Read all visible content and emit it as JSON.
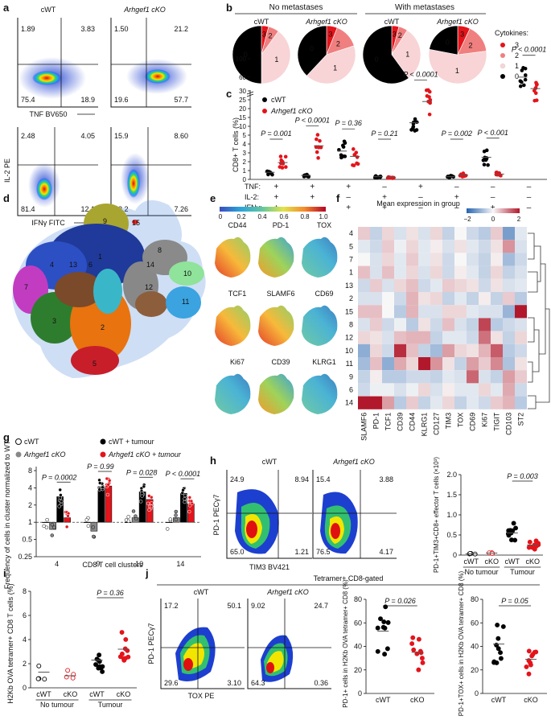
{
  "panel_labels": {
    "a": "a",
    "b": "b",
    "c": "c",
    "d": "d",
    "e": "e",
    "f": "f",
    "g": "g",
    "h": "h",
    "i": "i",
    "j": "j"
  },
  "panel_a": {
    "cols": [
      "cWT",
      "Arhgef1 cKO"
    ],
    "x_top": "TNF BV650",
    "x_bottom": "IFNγ FITC",
    "y_label": "IL-2 PE",
    "top_left": [
      "1.89",
      "3.83",
      "75.4",
      "18.9"
    ],
    "top_right": [
      "1.50",
      "21.2",
      "19.6",
      "57.7"
    ],
    "bot_left": [
      "2.48",
      "4.05",
      "81.4",
      "12.1"
    ],
    "bot_right": [
      "15.9",
      "8.60",
      "68.2",
      "7.26"
    ]
  },
  "panel_b": {
    "group_left": "No metastases",
    "group_right": "With metastases",
    "col_labels": [
      "cWT",
      "Arhgef1 cKO",
      "cWT",
      "Arhgef1 cKO"
    ],
    "legend_title": "Cytokines:",
    "categories": [
      "3",
      "2",
      "1",
      "0"
    ],
    "colors": [
      "#e4141b",
      "#f07f7f",
      "#f8d4d6",
      "#000000"
    ],
    "pies": [
      {
        "label": "cWT",
        "fractions": {
          "3": 0.04,
          "2": 0.06,
          "1": 0.4,
          "0": 0.5
        }
      },
      {
        "label": "Arhgef1 cKO",
        "fractions": {
          "3": 0.06,
          "2": 0.14,
          "1": 0.42,
          "0": 0.38
        }
      },
      {
        "label": "cWT",
        "fractions": {
          "3": 0.04,
          "2": 0.05,
          "1": 0.31,
          "0": 0.6
        }
      },
      {
        "label": "Arhgef1 cKO",
        "fractions": {
          "3": 0.07,
          "2": 0.16,
          "1": 0.55,
          "0": 0.22
        }
      }
    ]
  },
  "chart_data": [
    {
      "type": "scatter",
      "panel": "c",
      "ylabel": "CD8+ T cells (%)",
      "yticks": [
        "0",
        "1",
        "2",
        "3",
        "4",
        "5",
        "10",
        "15",
        "20",
        "25",
        "30",
        "60",
        "100"
      ],
      "legend": [
        "cWT",
        "Arhgef1 cKO"
      ],
      "row_labels": [
        "TNF:",
        "IL-2:",
        "IFNγ:"
      ],
      "groups": [
        {
          "tnf": "+",
          "il2": "+",
          "ifng": "+",
          "cWT_mean": 0.8,
          "cKO_mean": 1.9,
          "p": "P = 0.001"
        },
        {
          "tnf": "+",
          "il2": "+",
          "ifng": "–",
          "cWT_mean": 0.45,
          "cKO_mean": 3.8,
          "p": "P < 0.0001"
        },
        {
          "tnf": "+",
          "il2": "–",
          "ifng": "+",
          "cWT_mean": 3.2,
          "cKO_mean": 2.6,
          "p": "P = 0.36"
        },
        {
          "tnf": "–",
          "il2": "+",
          "ifng": "+",
          "cWT_mean": 0.3,
          "cKO_mean": 0.22,
          "p": "P = 0.21"
        },
        {
          "tnf": "+",
          "il2": "–",
          "ifng": "–",
          "cWT_mean": 12,
          "cKO_mean": 24,
          "p": "P < 0.0001"
        },
        {
          "tnf": "–",
          "il2": "+",
          "ifng": "–",
          "cWT_mean": 0.3,
          "cKO_mean": 0.5,
          "p": "P = 0.002"
        },
        {
          "tnf": "–",
          "il2": "–",
          "ifng": "+",
          "cWT_mean": 2.5,
          "cKO_mean": 0.6,
          "p": "P < 0.001"
        },
        {
          "tnf": "–",
          "il2": "–",
          "ifng": "–",
          "cWT_mean": 60,
          "cKO_mean": 35,
          "p": "P < 0.0001"
        }
      ]
    },
    {
      "type": "heatmap",
      "panel": "f",
      "title": "Mean expression in group",
      "scale": [
        "−2",
        "0",
        "2"
      ],
      "rows": [
        "4",
        "5",
        "7",
        "1",
        "13",
        "2",
        "15",
        "8",
        "12",
        "10",
        "11",
        "9",
        "6",
        "14"
      ],
      "cols": [
        "SLAMF6",
        "PD-1",
        "TCF1",
        "CD39",
        "CD44",
        "KLRG1",
        "CD127",
        "TIM3",
        "TOX",
        "CD69",
        "Ki67",
        "TIGIT",
        "CD103",
        "ST2"
      ],
      "values": [
        [
          0.4,
          -0.5,
          0.3,
          -0.3,
          0.2,
          -0.3,
          0.3,
          -0.5,
          0.0,
          -0.4,
          -0.6,
          0.4,
          -1.2,
          -0.2
        ],
        [
          -0.2,
          -0.4,
          0.4,
          -0.1,
          0.3,
          -0.2,
          0.1,
          -0.3,
          0.2,
          -0.2,
          -0.4,
          0.2,
          0.9,
          -0.3
        ],
        [
          0.0,
          -0.3,
          0.3,
          -0.2,
          0.4,
          -0.2,
          0.2,
          -0.4,
          0.0,
          -0.3,
          -0.5,
          0.1,
          -0.8,
          -0.4
        ],
        [
          0.5,
          -0.3,
          0.5,
          -0.2,
          0.3,
          -0.3,
          0.3,
          -0.4,
          0.1,
          -0.2,
          -0.5,
          0.3,
          -0.5,
          -0.3
        ],
        [
          -0.4,
          0.4,
          -0.3,
          0.3,
          0.5,
          -0.4,
          -0.2,
          0.4,
          0.3,
          0.2,
          -0.4,
          0.2,
          -0.3,
          -0.2
        ],
        [
          -0.3,
          -0.3,
          0.0,
          -0.4,
          0.6,
          0.2,
          0.3,
          -0.5,
          -0.2,
          -0.5,
          0.1,
          -0.5,
          0.4,
          -0.6
        ],
        [
          0.5,
          0.5,
          0.0,
          -0.6,
          0.6,
          -0.3,
          -0.3,
          0.3,
          0.3,
          -0.2,
          -0.3,
          -0.3,
          -0.9,
          2.2
        ],
        [
          -0.3,
          0.4,
          -0.4,
          -0.1,
          -0.6,
          0.2,
          -0.4,
          0.5,
          -0.3,
          -0.5,
          1.6,
          -0.6,
          -0.4,
          -0.3
        ],
        [
          0.3,
          0.2,
          -0.3,
          0.5,
          0.6,
          0.6,
          -0.5,
          -0.2,
          -0.2,
          -0.4,
          1.2,
          0.2,
          -0.5,
          0.3
        ],
        [
          -1.0,
          0.3,
          -0.4,
          1.8,
          0.5,
          -0.5,
          -0.8,
          0.8,
          0.3,
          0.2,
          0.6,
          1.4,
          -0.6,
          -0.4
        ],
        [
          -0.8,
          0.5,
          -1.0,
          0.7,
          0.3,
          2.2,
          0.9,
          0.2,
          -0.5,
          0.8,
          0.4,
          1.0,
          -0.7,
          0.2
        ],
        [
          -0.5,
          0.1,
          -0.6,
          -0.6,
          -0.4,
          -0.4,
          -0.5,
          -0.2,
          -0.3,
          1.3,
          -0.3,
          -0.5,
          0.8,
          0.4
        ],
        [
          -0.4,
          -0.1,
          -0.1,
          -0.3,
          -0.1,
          0.3,
          -0.3,
          0.1,
          -0.2,
          -0.2,
          0.3,
          -0.2,
          0.7,
          -0.4
        ],
        [
          2.2,
          2.1,
          0.8,
          -0.6,
          0.4,
          -0.5,
          -0.2,
          0.3,
          -0.5,
          -0.2,
          -0.4,
          0.4,
          0.6,
          -0.6
        ]
      ]
    },
    {
      "type": "bar",
      "panel": "g",
      "ylabel": "Frequency of cells in cluster normalized to WT",
      "xlabel": "CD8 T cell clusters",
      "yticks": [
        "0.25",
        "0.5",
        "1",
        "2",
        "4",
        "8"
      ],
      "legend": [
        "cWT",
        "Arhgef1 cKO",
        "cWT + tumour",
        "Arhgef1 cKO + tumour"
      ],
      "categories": [
        "4",
        "9",
        "10",
        "14"
      ],
      "series": [
        {
          "name": "cWT",
          "values": [
            1.0,
            1.0,
            1.0,
            1.0
          ]
        },
        {
          "name": "Arhgef1 cKO",
          "values": [
            0.75,
            0.7,
            1.2,
            1.2
          ]
        },
        {
          "name": "cWT + tumour",
          "values": [
            2.8,
            4.2,
            3.4,
            3.2
          ]
        },
        {
          "name": "Arhgef1 cKO + tumour",
          "values": [
            1.2,
            4.3,
            2.5,
            2.1
          ]
        }
      ],
      "pvals": [
        "P = 0.0002",
        "P = 0.99",
        "P = 0.028",
        "P < 0.0001"
      ]
    },
    {
      "type": "scatter",
      "panel": "h",
      "ylabel": "PD-1+TIM3+CD8+ effector T cells (×10³)",
      "yticks": [
        "0",
        "0.5",
        "1.0",
        "1.5",
        "2.0"
      ],
      "categories": [
        "cWT",
        "cKO",
        "cWT",
        "cKO"
      ],
      "means": [
        0.03,
        0.05,
        0.55,
        0.25
      ],
      "p": "P = 0.003",
      "groups": [
        "No tumour",
        "Tumour"
      ]
    },
    {
      "type": "scatter",
      "panel": "i",
      "ylabel": "H2Kb OVA tetramer+ CD8 T cells (%)",
      "yticks": [
        "0",
        "2",
        "4",
        "6",
        "8"
      ],
      "categories": [
        "cWT",
        "cKO",
        "cWT",
        "cKO"
      ],
      "means": [
        1.3,
        1.0,
        2.3,
        3.2
      ],
      "p": "P = 0.36",
      "groups": [
        "No tumour",
        "Tumour"
      ]
    },
    {
      "type": "scatter",
      "panel": "j1",
      "ylabel": "PD-1+ cells in H2Kb OVA tetramer+ CD8 (%)",
      "yticks": [
        "0",
        "20",
        "40",
        "60",
        "80"
      ],
      "categories": [
        "cWT",
        "cKO"
      ],
      "means": [
        53,
        35
      ],
      "p": "P = 0.026"
    },
    {
      "type": "scatter",
      "panel": "j2",
      "ylabel": "PD-1+TOX+ cells in H2Kb OVA tetramer+ CD8 (%)",
      "yticks": [
        "0",
        "20",
        "40",
        "60",
        "80"
      ],
      "categories": [
        "cWT",
        "cKO"
      ],
      "means": [
        42,
        29
      ],
      "p": "P = 0.05"
    }
  ],
  "panel_d": {
    "clusters": [
      "1",
      "2",
      "3",
      "4",
      "5",
      "6",
      "7",
      "8",
      "9",
      "10",
      "11",
      "12",
      "13",
      "14",
      "15"
    ]
  },
  "panel_e": {
    "scale": [
      "0",
      "0.2",
      "0.4",
      "0.6",
      "0.8",
      "1.0"
    ],
    "markers": [
      "CD44",
      "PD-1",
      "TOX",
      "TCF1",
      "SLAMF6",
      "CD69",
      "Ki67",
      "CD39",
      "KLRG1"
    ]
  },
  "panel_h": {
    "cols": [
      "cWT",
      "Arhgef1 cKO"
    ],
    "x": "TIM3 BV421",
    "y": "PD-1 PECγ7",
    "left": [
      "24.9",
      "8.94",
      "65.0",
      "1.21"
    ],
    "right": [
      "15.4",
      "3.88",
      "76.5",
      "4.17"
    ]
  },
  "panel_j": {
    "header": "Tetramer+ CD8-gated",
    "cols": [
      "cWT",
      "Arhgef1 cKO"
    ],
    "x": "TOX PE",
    "y": "PD-1 PECγ7",
    "left": [
      "17.2",
      "50.1",
      "29.6",
      "3.10"
    ],
    "right": [
      "9.02",
      "24.7",
      "64.3",
      "0.36"
    ]
  }
}
